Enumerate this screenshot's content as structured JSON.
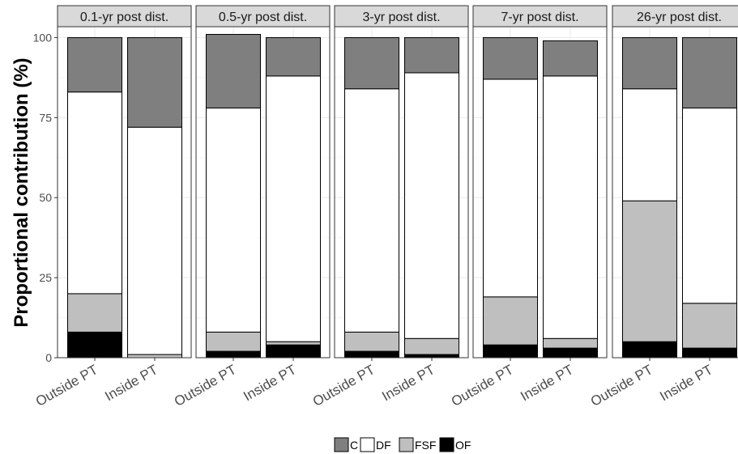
{
  "chart_data": {
    "type": "bar",
    "stacked": true,
    "ylabel": "Proportional contribution (%)",
    "ylim": [
      0,
      103.4
    ],
    "yticks": [
      0,
      25,
      50,
      75,
      100
    ],
    "categories": [
      "Outside PT",
      "Inside PT"
    ],
    "panels": [
      {
        "title": "0.1-yr post dist.",
        "bars": [
          {
            "category": "Outside PT",
            "OF": 8,
            "FSF": 12,
            "DF": 63,
            "C": 17
          },
          {
            "category": "Inside PT",
            "OF": 0,
            "FSF": 1,
            "DF": 71,
            "C": 28
          }
        ]
      },
      {
        "title": "0.5-yr post dist.",
        "bars": [
          {
            "category": "Outside PT",
            "OF": 2,
            "FSF": 6,
            "DF": 70,
            "C": 23
          },
          {
            "category": "Inside PT",
            "OF": 4,
            "FSF": 1,
            "DF": 83,
            "C": 12
          }
        ]
      },
      {
        "title": "3-yr post dist.",
        "bars": [
          {
            "category": "Outside PT",
            "OF": 2,
            "FSF": 6,
            "DF": 76,
            "C": 16
          },
          {
            "category": "Inside PT",
            "OF": 1,
            "FSF": 5,
            "DF": 83,
            "C": 11
          }
        ]
      },
      {
        "title": "7-yr post dist.",
        "bars": [
          {
            "category": "Outside PT",
            "OF": 4,
            "FSF": 15,
            "DF": 68,
            "C": 13
          },
          {
            "category": "Inside PT",
            "OF": 3,
            "FSF": 3,
            "DF": 82,
            "C": 11
          }
        ]
      },
      {
        "title": "26-yr post dist.",
        "bars": [
          {
            "category": "Outside PT",
            "OF": 5,
            "FSF": 44,
            "DF": 35,
            "C": 16
          },
          {
            "category": "Inside PT",
            "OF": 3,
            "FSF": 14,
            "DF": 61,
            "C": 22
          }
        ]
      }
    ],
    "stack_order": [
      "OF",
      "FSF",
      "DF",
      "C"
    ],
    "legend": {
      "position": "bottom",
      "entries": [
        {
          "key": "C",
          "label": "C",
          "color": "#7f7f7f"
        },
        {
          "key": "DF",
          "label": "DF",
          "color": "#ffffff"
        },
        {
          "key": "FSF",
          "label": "FSF",
          "color": "#bfbfbf"
        },
        {
          "key": "OF",
          "label": "OF",
          "color": "#000000"
        }
      ]
    },
    "colors": {
      "panel_background": "#ffffff",
      "panel_border": "#333333",
      "grid_major": "#ebebeb",
      "grid_minor": "#f5f5f5",
      "strip_fill": "#d9d9d9",
      "bar_outline": "#000000"
    },
    "grid": true
  }
}
